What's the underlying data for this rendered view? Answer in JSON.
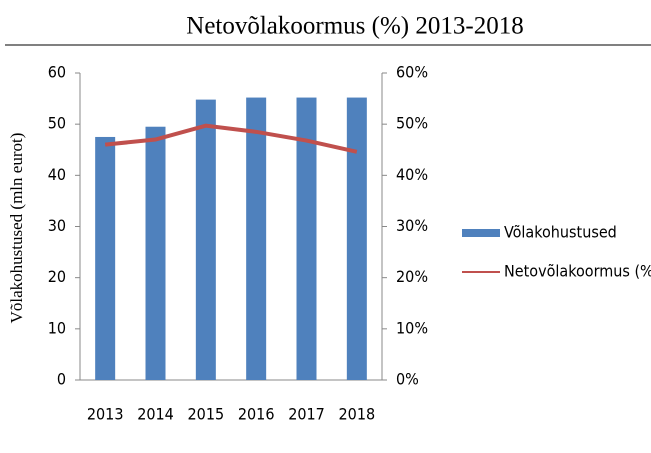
{
  "chart_data": {
    "type": "bar",
    "title": "Netovõlakoormus (%) 2013-2018",
    "y_label": "Võlakohustused (mln eurot)",
    "categories": [
      "2013",
      "2014",
      "2015",
      "2016",
      "2017",
      "2018"
    ],
    "series": [
      {
        "name": "Võlakohustused",
        "color": "#4f81bd",
        "values": [
          47.5,
          49.5,
          54.8,
          55.2,
          55.2,
          55.2
        ]
      },
      {
        "name": "Netovõlakoormus (%)",
        "color": "#c0504d",
        "type": "line",
        "axis": "y2",
        "values": [
          46,
          47,
          49.7,
          48.5,
          46.8,
          44.6
        ]
      }
    ],
    "ylim": [
      0,
      60
    ],
    "yticks": [
      0,
      10,
      20,
      30,
      40,
      50,
      60
    ],
    "y2lim": [
      0,
      60
    ],
    "y2ticks": [
      {
        "value": 0,
        "label": "0%"
      },
      {
        "value": 10,
        "label": "10%"
      },
      {
        "value": 20,
        "label": "20%"
      },
      {
        "value": 30,
        "label": "30%"
      },
      {
        "value": 40,
        "label": "40%"
      },
      {
        "value": 50,
        "label": "50%"
      },
      {
        "value": 60,
        "label": "60%"
      }
    ],
    "legend": "right"
  }
}
